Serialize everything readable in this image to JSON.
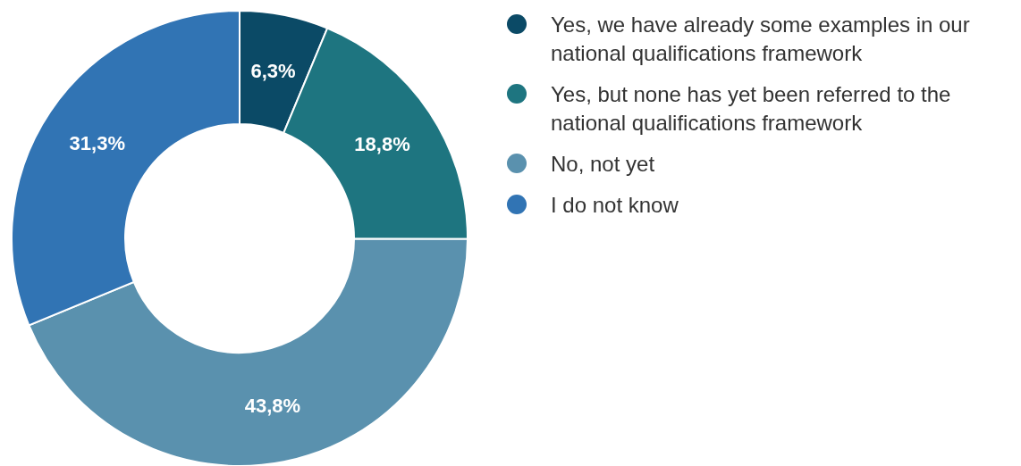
{
  "chart_data": {
    "type": "donut",
    "categories": [
      "Yes, we have already some examples in our national qualifications framework",
      "Yes, but none has yet been referred to the national qualifications framework",
      "No, not yet",
      "I do not know"
    ],
    "values": [
      6.3,
      18.8,
      43.8,
      31.3
    ],
    "colors": [
      "#0b4a66",
      "#1e7580",
      "#5a91ae",
      "#3174b4"
    ],
    "value_labels": [
      "6,3%",
      "18,8%",
      "43,8%",
      "31,3%"
    ],
    "legend": "right"
  }
}
